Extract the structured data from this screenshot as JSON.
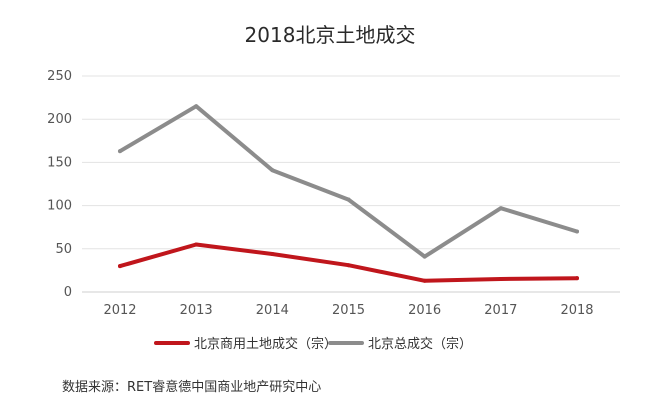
{
  "chart_data": {
    "type": "line",
    "title": "2018北京土地成交",
    "categories": [
      "2012",
      "2013",
      "2014",
      "2015",
      "2016",
      "2017",
      "2018"
    ],
    "series": [
      {
        "name": "北京商用土地成交（宗）",
        "color": "#c0161c",
        "values": [
          30,
          55,
          44,
          31,
          13,
          15,
          16
        ]
      },
      {
        "name": "北京总成交（宗）",
        "color": "#8c8c8c",
        "values": [
          163,
          215,
          141,
          107,
          41,
          97,
          70
        ]
      }
    ],
    "ylim": [
      0,
      250
    ],
    "yticks": [
      "0",
      "50",
      "100",
      "150",
      "200",
      "250"
    ],
    "xlabel": "",
    "ylabel": "",
    "grid": true,
    "legend_position": "bottom"
  },
  "source_note": "数据来源：RET睿意德中国商业地产研究中心"
}
